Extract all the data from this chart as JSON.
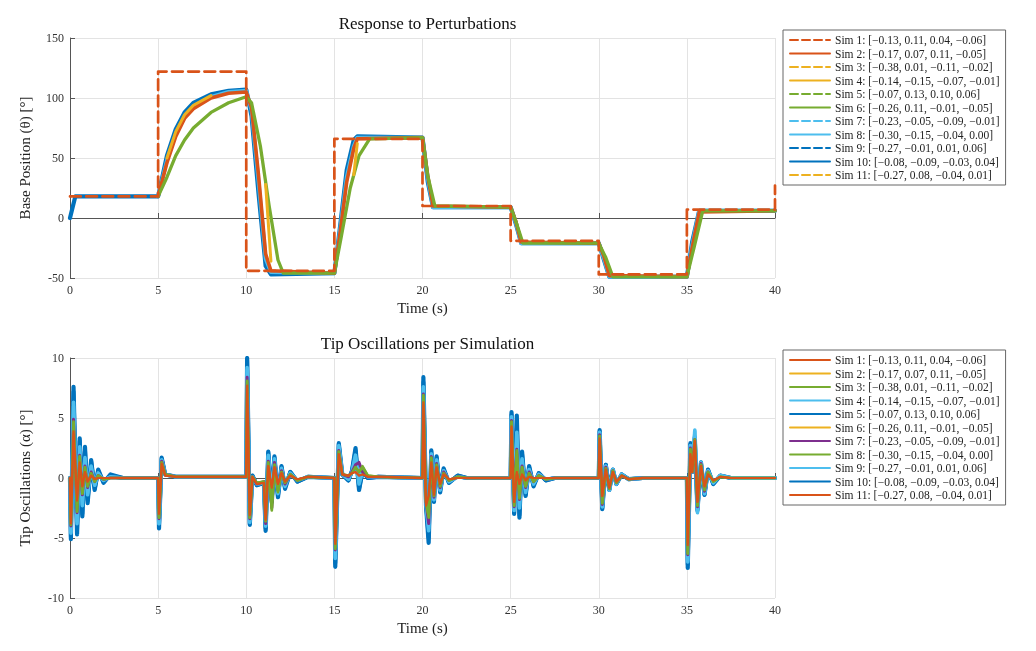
{
  "chart_data": [
    {
      "type": "line",
      "title": "Response to Perturbations",
      "xlabel": "Time (s)",
      "ylabel": "Base Position (θ) [°]",
      "xlim": [
        0,
        40
      ],
      "xticks": [
        0,
        5,
        10,
        15,
        20,
        25,
        30,
        35,
        40
      ],
      "ylim": [
        -50,
        150
      ],
      "yticks": [
        -50,
        0,
        50,
        100,
        150
      ],
      "grid": true,
      "legend": "right",
      "marker": "none",
      "series": [
        {
          "name": "Sim 1: [−0.13, 0.11, 0.04, −0.06]",
          "type": "step",
          "line_style": "dashed",
          "color": "#d95319",
          "x": [
            0,
            5,
            10,
            15,
            20,
            25,
            30,
            35,
            40
          ],
          "values": [
            18,
            122,
            -44,
            66,
            10,
            -19,
            -47,
            7,
            27
          ]
        },
        {
          "name": "Sim 2: [−0.17, 0.07, 0.11, −0.05]",
          "line_style": "solid",
          "color": "#d95319",
          "x": [
            5,
            5.5,
            6,
            6.5,
            7,
            8,
            9,
            10,
            10.3,
            10.7,
            11.1,
            11.4,
            15,
            15.3,
            15.7,
            16.1,
            16.3,
            20,
            20.3,
            20.6,
            25,
            25.3,
            25.6,
            30,
            30.3,
            30.6,
            35,
            35.3,
            35.7,
            40
          ],
          "values": [
            18,
            46,
            68,
            83,
            91,
            100,
            104,
            105,
            92,
            35,
            -30,
            -44,
            -46,
            -15,
            30,
            58,
            66,
            67,
            35,
            10,
            9,
            -3,
            -20,
            -21,
            -32,
            -48,
            -49,
            -25,
            5,
            6
          ]
        },
        {
          "name": "Sim 3: [−0.38, 0.01, −0.11, −0.02]",
          "type": "step",
          "line_style": "dashed",
          "color": "#edb120"
        },
        {
          "name": "Sim 4: [−0.14, −0.15, −0.07, −0.01]",
          "line_style": "solid",
          "color": "#edb120",
          "x": [
            5.5,
            6,
            6.5,
            7,
            8,
            9,
            10,
            10.3,
            10.7,
            11.1,
            11.4,
            15,
            15.3,
            15.7,
            16.1,
            16.3
          ],
          "values": [
            50,
            72,
            86,
            94,
            102,
            null,
            null,
            null,
            null,
            28,
            -36,
            null,
            null,
            null,
            36,
            62
          ]
        },
        {
          "name": "Sim 5: [−0.07, 0.13, 0.10, 0.06]",
          "type": "step",
          "line_style": "dashed",
          "color": "#77ac30"
        },
        {
          "name": "Sim 6: [−0.26, 0.11, −0.01, −0.05]",
          "line_style": "solid",
          "color": "#77ac30",
          "x": [
            5,
            5.5,
            6,
            6.5,
            7,
            8,
            9,
            10,
            10.3,
            10.8,
            11.3,
            11.8,
            12.1,
            15,
            15.4,
            15.9,
            16.4,
            17,
            20,
            20.3,
            20.7,
            25,
            25.3,
            25.7,
            30,
            30.4,
            30.8,
            35,
            35.4,
            35.9,
            40
          ],
          "values": [
            18,
            34,
            52,
            65,
            75,
            88,
            96,
            101,
            96,
            60,
            10,
            -35,
            -46,
            -46,
            -15,
            25,
            52,
            66,
            67,
            35,
            10,
            9,
            -3,
            -21,
            -21,
            -33,
            -49,
            -49,
            -25,
            6,
            6
          ]
        },
        {
          "name": "Sim 7: [−0.23, −0.05, −0.09, −0.01]",
          "type": "step",
          "line_style": "dashed",
          "color": "#4dbeee"
        },
        {
          "name": "Sim 8: [−0.30, −0.15, −0.04, 0.00]",
          "line_style": "solid",
          "color": "#4dbeee",
          "x": [
            5,
            5.5,
            6,
            6.5,
            7,
            8,
            9,
            10,
            10.3,
            10.7,
            11.1,
            11.4,
            15,
            15.3,
            15.7,
            16.1,
            16.3,
            20,
            20.3,
            20.6,
            25,
            25.3,
            25.6,
            30,
            30.3,
            30.6,
            35,
            35.3,
            35.7,
            40
          ],
          "values": [
            18,
            48,
            70,
            84,
            93,
            101,
            105,
            106,
            90,
            30,
            -34,
            -45,
            -46,
            -13,
            34,
            60,
            67,
            67,
            33,
            9,
            9,
            -4,
            -21,
            -21,
            -34,
            -49,
            -49,
            -23,
            6,
            6
          ]
        },
        {
          "name": "Sim 9: [−0.27, −0.01, 0.01, 0.06]",
          "type": "step",
          "line_style": "dashed",
          "color": "#0072bd"
        },
        {
          "name": "Sim 10: [−0.08, −0.09, −0.03, 0.04]",
          "line_style": "solid",
          "color": "#0072bd",
          "x": [
            0,
            0.3,
            5,
            5.5,
            6,
            6.5,
            7,
            8,
            9,
            10,
            10.3,
            10.7,
            11.1,
            11.4,
            15,
            15.3,
            15.7,
            16.1,
            16.3,
            20,
            20.3,
            20.6,
            25,
            25.3,
            25.6,
            30,
            30.3,
            30.6,
            35,
            35.3,
            35.7,
            40
          ],
          "values": [
            0,
            18,
            18,
            52,
            74,
            88,
            96,
            103,
            106,
            107,
            85,
            20,
            -40,
            -47,
            -46,
            -10,
            40,
            65,
            68,
            67,
            30,
            9,
            9,
            -5,
            -21,
            -21,
            -35,
            -49,
            -49,
            -20,
            6,
            6
          ]
        },
        {
          "name": "Sim 11: [−0.27, 0.08, −0.04, 0.01]",
          "type": "step",
          "line_style": "dashed",
          "color": "#edb120"
        }
      ]
    },
    {
      "type": "line",
      "title": "Tip Oscillations per Simulation",
      "xlabel": "Time (s)",
      "ylabel": "Tip Oscillations (α) [°]",
      "xlim": [
        0,
        40
      ],
      "xticks": [
        0,
        5,
        10,
        15,
        20,
        25,
        30,
        35,
        40
      ],
      "ylim": [
        -10,
        10
      ],
      "yticks": [
        -10,
        -5,
        0,
        5,
        10
      ],
      "grid": true,
      "legend": "right",
      "marker": "none",
      "line_style": "solid",
      "x": [
        0,
        0.05,
        0.2,
        0.4,
        0.55,
        0.7,
        0.85,
        1.0,
        1.2,
        1.4,
        1.6,
        1.9,
        2.3,
        3.0,
        5.0,
        5.05,
        5.2,
        5.4,
        6.0,
        10.0,
        10.05,
        10.2,
        10.35,
        10.6,
        11.0,
        11.1,
        11.25,
        11.45,
        11.6,
        11.8,
        12.0,
        12.2,
        12.5,
        12.9,
        13.5,
        15.0,
        15.05,
        15.25,
        15.45,
        15.8,
        16.0,
        16.2,
        16.4,
        16.6,
        16.9,
        17.5,
        20.0,
        20.05,
        20.2,
        20.35,
        20.5,
        20.65,
        20.8,
        21.0,
        21.2,
        21.5,
        22.0,
        22.5,
        25.0,
        25.05,
        25.2,
        25.35,
        25.5,
        25.65,
        25.85,
        26.05,
        26.3,
        26.6,
        27.0,
        27.5,
        30.0,
        30.05,
        30.2,
        30.4,
        30.6,
        30.8,
        31.0,
        31.3,
        31.7,
        32.5,
        35.0,
        35.05,
        35.2,
        35.3,
        35.45,
        35.6,
        35.8,
        36.0,
        36.2,
        36.5,
        36.9,
        37.5,
        40.0
      ],
      "series": [
        {
          "name": "Sim 1: [−0.13, 0.11, 0.04, −0.06]",
          "color": "#d95319",
          "values": [
            0,
            -3.6,
            3.7,
            -1.8,
            1.2,
            -0.7,
            0.5,
            -0.3,
            0.2,
            -0.1,
            0,
            0,
            0,
            0,
            0,
            -2.9,
            1.1,
            0.2,
            0.1,
            0.1,
            7.5,
            -3.0,
            0.1,
            -0.5,
            -0.4,
            -3.4,
            1.0,
            -0.8,
            0.9,
            -0.5,
            0.4,
            -0.3,
            0.2,
            -0.1,
            0.1,
            0,
            -5.3,
            1.9,
            0.3,
            0.2,
            0.4,
            0.5,
            0.2,
            0.3,
            0.1,
            0.1,
            0,
            6.1,
            -2.2,
            -1.5,
            1.2,
            -1.3,
            0.9,
            -0.5,
            0.3,
            -0.1,
            0,
            0,
            0,
            4.2,
            -2.0,
            0.5,
            -0.5,
            0.3,
            -0.2,
            0.1,
            0,
            0,
            0,
            0,
            0,
            3.2,
            -1.5,
            0.7,
            -0.8,
            0.5,
            -0.3,
            0.2,
            -0.1,
            0,
            0,
            -5.4,
            2.0,
            0.5,
            3.0,
            -2.0,
            1.0,
            -0.7,
            0.3,
            -0.2,
            0.1,
            0,
            0
          ]
        },
        {
          "name": "Sim 2: [−0.17, 0.07, 0.11, −0.05]",
          "color": "#edb120",
          "values": [
            null,
            null,
            null,
            null,
            null,
            null,
            null,
            null,
            null,
            null,
            null,
            null,
            null,
            null,
            null,
            null,
            null,
            null,
            null,
            null,
            null,
            null,
            null,
            null,
            null,
            null,
            null,
            null,
            null,
            null,
            null,
            null,
            null,
            null,
            null,
            null,
            null,
            null,
            null,
            null,
            null,
            null,
            null,
            null,
            null,
            null,
            null,
            null,
            null,
            null,
            null,
            null,
            null,
            null,
            null,
            null,
            null,
            null,
            null,
            null,
            null,
            null,
            null,
            null,
            null,
            null,
            null,
            null,
            null,
            null,
            null,
            null,
            null,
            null,
            null,
            null,
            null,
            null,
            null,
            null,
            null,
            null,
            null,
            null,
            null,
            null,
            null,
            null,
            null,
            null,
            null,
            null,
            null
          ]
        },
        {
          "name": "Sim 3: [−0.38, 0.01, −0.11, −0.02]",
          "color": "#77ac30",
          "values": [
            0,
            -3.8,
            4.6,
            -2.7,
            1.8,
            -1.3,
            0.9,
            -0.7,
            0.4,
            -0.3,
            0.2,
            -0.1,
            0,
            0,
            0,
            -3.3,
            1.3,
            0.3,
            0.1,
            0.1,
            8.0,
            -3.3,
            0.1,
            -0.4,
            -0.3,
            -3.6,
            1.2,
            -2.6,
            1.1,
            -1.2,
            0.5,
            -0.4,
            0.3,
            -0.2,
            0.1,
            0,
            -5.8,
            2.2,
            0.3,
            0.2,
            0.4,
            0.9,
            0.5,
            1.0,
            0.2,
            0.1,
            0,
            6.8,
            -2.0,
            -3.2,
            1.6,
            -1.5,
            1.1,
            -0.7,
            0.4,
            -0.2,
            0.1,
            0,
            0,
            4.6,
            -2.3,
            2.2,
            -1.6,
            0.9,
            -0.7,
            0.4,
            -0.3,
            0.2,
            -0.1,
            0,
            0,
            3.5,
            -2.1,
            0.8,
            -0.9,
            0.6,
            -0.4,
            0.2,
            -0.1,
            0,
            0,
            -6.3,
            2.4,
            0.5,
            3.2,
            -2.3,
            1.1,
            -1.0,
            0.5,
            -0.3,
            0.1,
            0,
            0
          ]
        },
        {
          "name": "Sim 4: [−0.14, −0.15, −0.07, −0.01]",
          "color": "#4dbeee",
          "values": [
            0,
            -4.5,
            6.0,
            -3.6,
            2.5,
            -2.2,
            1.6,
            -1.3,
            0.9,
            -0.6,
            0.4,
            -0.2,
            0.1,
            0,
            0,
            -3.8,
            1.5,
            0.3,
            0.1,
            0.1,
            9.0,
            -3.6,
            0.1,
            -0.5,
            -0.4,
            -4.0,
            1.8,
            -1.8,
            1.5,
            -1.2,
            0.7,
            -0.6,
            0.4,
            -0.2,
            0.1,
            0,
            -6.6,
            2.6,
            0.3,
            -0.1,
            0.5,
            1.8,
            -0.4,
            0.6,
            0.1,
            0.1,
            0,
            7.5,
            -2.1,
            -4.2,
            2.0,
            -1.8,
            1.5,
            -1.0,
            0.6,
            -0.3,
            0.1,
            0,
            0,
            5.0,
            -2.7,
            3.6,
            -2.4,
            1.5,
            -1.1,
            0.7,
            -0.5,
            0.3,
            -0.1,
            0,
            0,
            3.8,
            -2.4,
            1.0,
            -1.0,
            0.7,
            -0.5,
            0.3,
            -0.1,
            0,
            0,
            -6.9,
            2.7,
            0.5,
            3.9,
            -2.8,
            1.3,
            -1.3,
            0.6,
            -0.4,
            0.2,
            0,
            0
          ]
        },
        {
          "name": "Sim 5: [−0.07, 0.13, 0.10, 0.06]",
          "color": "#0072bd",
          "values": [
            0,
            -4.9,
            7.2,
            -4.4,
            3.1,
            -3.0,
            2.4,
            -1.9,
            1.4,
            -0.9,
            0.6,
            -0.3,
            0.2,
            0,
            0,
            -4.0,
            1.6,
            0.3,
            0.1,
            0.1,
            9.8,
            -3.8,
            0.2,
            -0.6,
            -0.4,
            -4.2,
            2.1,
            -1.9,
            1.7,
            -1.5,
            0.9,
            -0.8,
            0.5,
            -0.3,
            0.1,
            0,
            -7.1,
            2.8,
            0.3,
            -0.2,
            0.6,
            2.3,
            -0.9,
            0.6,
            0,
            0.1,
            0,
            8.0,
            -2.2,
            -5.0,
            2.2,
            -1.9,
            1.7,
            -1.1,
            0.7,
            -0.4,
            0.2,
            0,
            0,
            5.3,
            -2.9,
            4.8,
            -3.1,
            2.0,
            -1.4,
            0.9,
            -0.6,
            0.4,
            -0.2,
            0,
            0,
            3.9,
            -2.5,
            1.1,
            -1.0,
            0.7,
            -0.5,
            0.3,
            -0.1,
            0,
            0,
            -7.2,
            2.8,
            0.5,
            3.3,
            -2.6,
            1.3,
            -1.4,
            0.7,
            -0.5,
            0.2,
            0,
            0
          ]
        },
        {
          "name": "Sim 6: [−0.26, 0.11, −0.01, −0.05]",
          "color": "#edb120",
          "values": [
            null,
            null,
            null,
            null,
            null,
            null,
            null,
            null,
            null,
            null,
            null,
            null,
            null,
            null,
            null,
            null,
            null,
            null,
            null,
            null,
            null,
            null,
            null,
            null,
            null,
            null,
            null,
            null,
            null,
            null,
            null,
            null,
            null,
            null,
            null,
            null,
            null,
            null,
            null,
            null,
            null,
            null,
            null,
            null,
            null,
            null,
            null,
            null,
            null,
            null,
            null,
            null,
            null,
            null,
            null,
            null,
            null,
            null,
            null,
            null,
            null,
            null,
            null,
            null,
            null,
            null,
            null,
            null,
            null,
            null,
            null,
            null,
            null,
            null,
            null,
            null,
            null,
            null,
            null,
            null,
            null,
            null,
            null,
            null,
            null,
            null,
            null,
            null,
            null,
            null,
            null,
            null,
            null
          ]
        },
        {
          "name": "Sim 7: [−0.23, −0.05, −0.09, −0.01]",
          "color": "#7e2f8e",
          "values": [
            0,
            -4.0,
            4.9,
            -2.9,
            1.9,
            -1.4,
            1.0,
            -0.8,
            0.5,
            -0.3,
            0.2,
            -0.1,
            0,
            0,
            0,
            -3.4,
            1.4,
            0.3,
            0.1,
            0.1,
            8.4,
            -3.4,
            0.1,
            -0.5,
            -0.3,
            -3.8,
            1.4,
            -2.5,
            1.3,
            -1.0,
            0.6,
            -0.5,
            0.3,
            -0.2,
            0.1,
            0,
            -6.0,
            2.3,
            0.3,
            0.1,
            0.5,
            1.1,
            1.3,
            0.5,
            0.1,
            0.1,
            0,
            7.0,
            -2.0,
            -3.8,
            1.8,
            -1.6,
            1.2,
            -0.8,
            0.5,
            -0.2,
            0.1,
            0,
            0,
            4.8,
            -2.4,
            2.4,
            -1.8,
            1.0,
            -0.8,
            0.5,
            -0.3,
            0.2,
            -0.1,
            0,
            0,
            3.6,
            -2.2,
            0.9,
            -0.9,
            0.6,
            -0.4,
            0.2,
            -0.1,
            0,
            0,
            -6.4,
            2.5,
            0.5,
            3.2,
            -2.4,
            1.2,
            -1.1,
            0.5,
            null,
            null,
            null,
            null
          ]
        },
        {
          "name": "Sim 8: [−0.30, −0.15, −0.04, 0.00]",
          "color": "#77ac30",
          "values": [
            0,
            -3.9,
            4.7,
            -2.8,
            1.8,
            -1.3,
            0.9,
            -0.7,
            0.4,
            -0.3,
            0.2,
            -0.1,
            0,
            0,
            0,
            -3.3,
            1.3,
            0.3,
            0.1,
            0.1,
            8.1,
            -3.3,
            0.1,
            -0.4,
            -0.3,
            -3.6,
            1.3,
            -2.7,
            1.1,
            -1.1,
            0.5,
            -0.4,
            0.3,
            -0.2,
            0.1,
            0,
            -5.9,
            2.2,
            0.3,
            0.2,
            0.4,
            0.9,
            0.5,
            0.9,
            0.2,
            0.1,
            0,
            6.9,
            -2.0,
            -3.3,
            1.7,
            -1.5,
            1.1,
            -0.7,
            0.4,
            -0.2,
            0.1,
            0,
            0,
            4.7,
            -2.3,
            2.3,
            -1.7,
            0.9,
            -0.7,
            0.4,
            -0.3,
            0.2,
            -0.1,
            0,
            0,
            3.5,
            -2.1,
            0.8,
            -0.9,
            0.6,
            -0.4,
            0.2,
            -0.1,
            0,
            0,
            -6.3,
            2.4,
            0.5,
            3.2,
            -2.3,
            1.1,
            -1.0,
            0.5,
            -0.3,
            0.1,
            0,
            0
          ]
        },
        {
          "name": "Sim 9: [−0.27, −0.01, 0.01, 0.06]",
          "color": "#4dbeee",
          "values": [
            0,
            -4.6,
            6.3,
            -3.8,
            2.6,
            -2.3,
            1.7,
            -1.4,
            1.0,
            -0.6,
            0.4,
            -0.2,
            0.1,
            0,
            0,
            -3.8,
            1.5,
            0.3,
            0.1,
            0.1,
            9.2,
            -3.7,
            0.1,
            -0.5,
            -0.4,
            -4.0,
            1.9,
            -1.8,
            1.6,
            -1.3,
            0.8,
            -0.7,
            0.4,
            -0.2,
            0.1,
            0,
            -6.7,
            2.7,
            0.3,
            -0.1,
            0.5,
            1.9,
            -0.5,
            0.6,
            0.1,
            0.1,
            0,
            7.6,
            -2.1,
            -4.4,
            2.0,
            -1.8,
            1.5,
            -1.0,
            0.6,
            -0.3,
            0.1,
            0,
            0,
            5.1,
            -2.7,
            3.8,
            -2.5,
            1.6,
            -1.2,
            0.7,
            -0.5,
            0.3,
            -0.1,
            0,
            0,
            3.8,
            -2.4,
            1.0,
            -1.0,
            0.7,
            -0.5,
            0.3,
            -0.1,
            0,
            0,
            -7.0,
            2.7,
            0.5,
            4.0,
            -2.9,
            1.3,
            -1.3,
            0.6,
            -0.4,
            0.2,
            0,
            0
          ]
        },
        {
          "name": "Sim 10: [−0.08, −0.09, −0.03, 0.04]",
          "color": "#0072bd",
          "values": [
            0,
            -5.1,
            7.6,
            -4.7,
            3.3,
            -3.2,
            2.6,
            -2.1,
            1.5,
            -1.0,
            0.7,
            -0.4,
            0.3,
            0,
            0,
            -4.2,
            1.7,
            0.3,
            0.1,
            0.1,
            10,
            -3.9,
            0.2,
            -0.6,
            -0.4,
            -4.4,
            2.2,
            -2.0,
            1.8,
            -1.6,
            1.0,
            -0.9,
            0.5,
            -0.3,
            0.1,
            0,
            -7.4,
            2.9,
            0.3,
            -0.2,
            0.6,
            2.5,
            -1.0,
            0.6,
            0,
            0.1,
            0,
            8.4,
            -2.3,
            -5.4,
            2.3,
            -2.0,
            1.8,
            -1.2,
            0.8,
            -0.4,
            0.2,
            0,
            0,
            5.5,
            -3.0,
            5.2,
            -3.3,
            2.2,
            -1.5,
            1.0,
            -0.7,
            0.4,
            -0.2,
            0,
            0,
            4.0,
            -2.6,
            1.1,
            -1.0,
            0.7,
            -0.5,
            0.3,
            -0.1,
            0,
            0,
            -7.5,
            2.9,
            0.5,
            3.4,
            -2.7,
            1.3,
            -1.4,
            0.7,
            -0.5,
            0.2,
            0,
            0
          ]
        },
        {
          "name": "Sim 11: [−0.27, 0.08, −0.04, 0.01]",
          "color": "#d95319",
          "values": [
            0,
            -3.8,
            3.9,
            -1.9,
            1.3,
            -0.7,
            0.5,
            -0.3,
            0.2,
            -0.1,
            0,
            0,
            0,
            0,
            0,
            -3.0,
            1.2,
            0.2,
            0.1,
            0.1,
            7.7,
            -3.1,
            0.1,
            -0.5,
            -0.4,
            -3.5,
            1.0,
            -0.8,
            0.9,
            -0.5,
            0.4,
            -0.3,
            0.2,
            -0.1,
            0.1,
            0,
            -5.5,
            2.0,
            0.3,
            0.2,
            0.4,
            0.5,
            0.2,
            0.3,
            0.1,
            0.1,
            0,
            6.3,
            -2.3,
            -1.5,
            1.3,
            -1.4,
            0.9,
            -0.5,
            0.3,
            -0.1,
            0,
            0,
            0,
            4.3,
            -2.0,
            0.5,
            -0.5,
            0.3,
            -0.2,
            0.1,
            0,
            0,
            0,
            0,
            0,
            3.3,
            -1.5,
            0.7,
            -0.8,
            0.5,
            -0.3,
            0.2,
            -0.1,
            0,
            0,
            -5.6,
            2.0,
            0.5,
            3.1,
            -2.0,
            1.0,
            -0.7,
            0.3,
            -0.2,
            0.1,
            0,
            0
          ]
        }
      ]
    }
  ]
}
